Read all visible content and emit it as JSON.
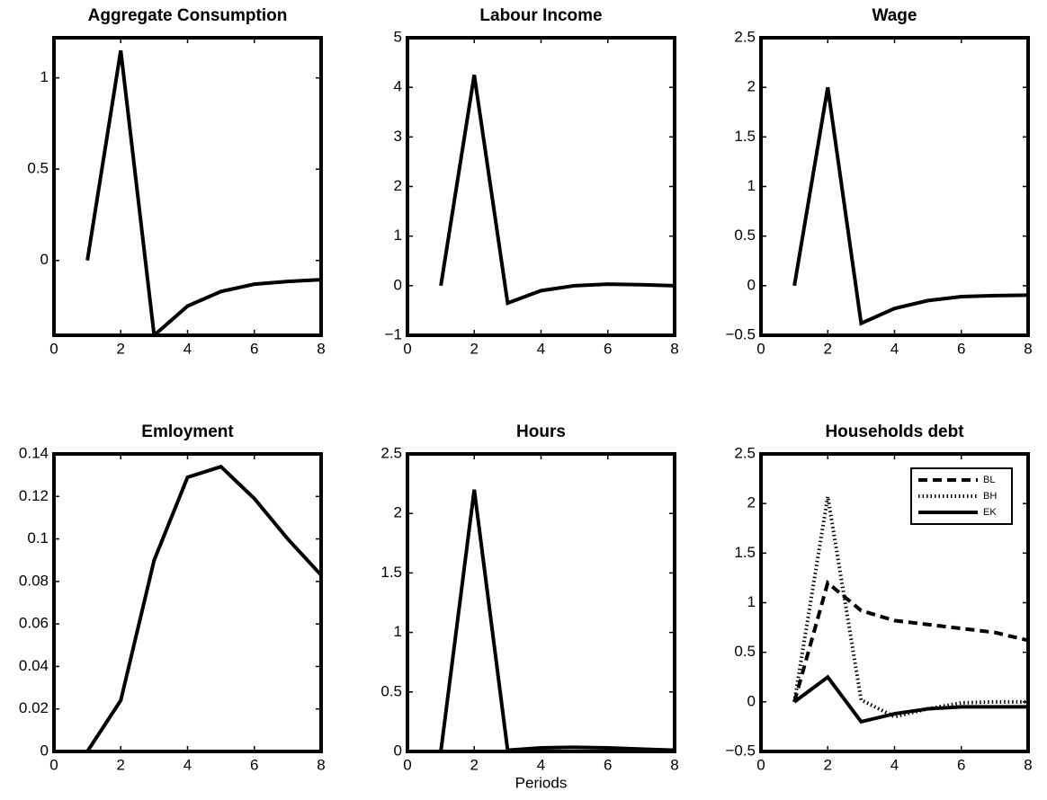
{
  "chart_data": [
    {
      "type": "line",
      "title": "Aggregate Consumption",
      "x": [
        1,
        2,
        3,
        4,
        5,
        6,
        7,
        8
      ],
      "series": [
        {
          "color": "#000000",
          "style": "solid",
          "values": [
            0,
            1.15,
            -0.41,
            -0.25,
            -0.17,
            -0.13,
            -0.115,
            -0.105
          ]
        }
      ],
      "xlim": [
        0,
        8
      ],
      "xticks": [
        0,
        2,
        4,
        6,
        8
      ],
      "ylim": [
        -0.41,
        1.22
      ],
      "yticks": [
        0,
        0.5,
        1
      ]
    },
    {
      "type": "line",
      "title": "Labour Income",
      "x": [
        1,
        2,
        3,
        4,
        5,
        6,
        7,
        8
      ],
      "series": [
        {
          "color": "#000000",
          "style": "solid",
          "values": [
            0,
            4.25,
            -0.35,
            -0.1,
            0.0,
            0.03,
            0.02,
            0.0
          ]
        }
      ],
      "xlim": [
        0,
        8
      ],
      "xticks": [
        0,
        2,
        4,
        6,
        8
      ],
      "ylim": [
        -1,
        5
      ],
      "yticks": [
        {
          "value": -1,
          "label": "−1"
        },
        0,
        1,
        2,
        3,
        4,
        5
      ]
    },
    {
      "type": "line",
      "title": "Wage",
      "x": [
        1,
        2,
        3,
        4,
        5,
        6,
        7,
        8
      ],
      "series": [
        {
          "color": "#000000",
          "style": "solid",
          "values": [
            0,
            2.0,
            -0.38,
            -0.23,
            -0.15,
            -0.11,
            -0.1,
            -0.095
          ]
        }
      ],
      "xlim": [
        0,
        8
      ],
      "xticks": [
        0,
        2,
        4,
        6,
        8
      ],
      "ylim": [
        -0.5,
        2.5
      ],
      "yticks": [
        {
          "value": -0.5,
          "label": "−0.5"
        },
        0,
        0.5,
        1,
        1.5,
        2,
        2.5
      ]
    },
    {
      "type": "line",
      "title": "Emloyment",
      "x": [
        1,
        2,
        3,
        4,
        5,
        6,
        7,
        8
      ],
      "series": [
        {
          "color": "#000000",
          "style": "solid",
          "values": [
            0,
            0.024,
            0.09,
            0.129,
            0.134,
            0.119,
            0.1,
            0.083
          ]
        }
      ],
      "xlim": [
        0,
        8
      ],
      "xticks": [
        0,
        2,
        4,
        6,
        8
      ],
      "ylim": [
        0,
        0.14
      ],
      "yticks": [
        0,
        0.02,
        0.04,
        0.06,
        0.08,
        0.1,
        0.12,
        0.14
      ]
    },
    {
      "type": "line",
      "title": "Hours",
      "xlabel": "Periods",
      "x": [
        1,
        2,
        3,
        4,
        5,
        6,
        7,
        8
      ],
      "series": [
        {
          "color": "#000000",
          "style": "solid",
          "values": [
            0,
            2.2,
            0.01,
            0.03,
            0.035,
            0.03,
            0.02,
            0.01
          ]
        }
      ],
      "xlim": [
        0,
        8
      ],
      "xticks": [
        0,
        2,
        4,
        6,
        8
      ],
      "ylim": [
        0,
        2.5
      ],
      "yticks": [
        0,
        0.5,
        1,
        1.5,
        2,
        2.5
      ]
    },
    {
      "type": "line",
      "title": "Households debt",
      "x": [
        1,
        2,
        3,
        4,
        5,
        6,
        7,
        8
      ],
      "series": [
        {
          "name": "BL",
          "color": "#000000",
          "style": "dashed",
          "values": [
            0,
            1.2,
            0.92,
            0.82,
            0.78,
            0.74,
            0.7,
            0.62
          ]
        },
        {
          "name": "BH",
          "color": "#000000",
          "style": "dotted",
          "values": [
            0,
            2.07,
            0.02,
            -0.15,
            -0.07,
            -0.01,
            0,
            0
          ]
        },
        {
          "name": "EK",
          "color": "#000000",
          "style": "solid",
          "values": [
            0,
            0.25,
            -0.2,
            -0.12,
            -0.07,
            -0.05,
            -0.05,
            -0.05
          ]
        }
      ],
      "legend": "upper right",
      "xlim": [
        0,
        8
      ],
      "xticks": [
        0,
        2,
        4,
        6,
        8
      ],
      "ylim": [
        -0.5,
        2.5
      ],
      "yticks": [
        {
          "value": -0.5,
          "label": "−0.5"
        },
        0,
        0.5,
        1,
        1.5,
        2,
        2.5
      ]
    }
  ]
}
